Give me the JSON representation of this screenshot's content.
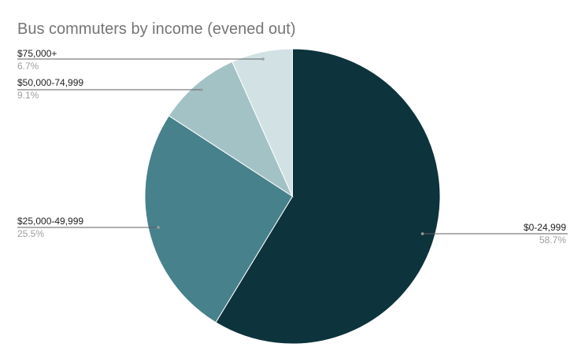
{
  "chart_data": {
    "type": "pie",
    "title": "Bus commuters by income (evened out)",
    "slices": [
      {
        "label": "$0-24,999",
        "value": 58.7,
        "display": "58.7%",
        "color": "#0d333c"
      },
      {
        "label": "$25,000-49,999",
        "value": 25.5,
        "display": "25.5%",
        "color": "#47818c"
      },
      {
        "label": "$50,000-74,999",
        "value": 9.1,
        "display": "9.1%",
        "color": "#a3c2c6"
      },
      {
        "label": "$75,000+",
        "value": 6.7,
        "display": "6.7%",
        "color": "#d2e1e4"
      }
    ],
    "start_angle": "12 o'clock",
    "direction": "clockwise",
    "legend": "none"
  }
}
